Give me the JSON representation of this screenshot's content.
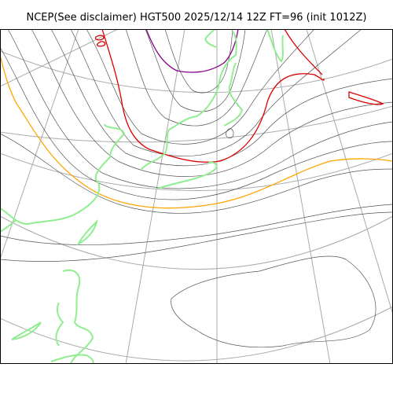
{
  "title": "NCEP(See disclaimer) HGT500 2025/12/14 12Z FT=96 (init 1012Z)",
  "colors": {
    "graticule": "#aaaaaa",
    "contour": "#555555",
    "coastline": "#90ee90",
    "highlight_contour_red": "#dd0000",
    "highlight_contour_purple": "#880088",
    "highlight_contour_orange": "#ffa500",
    "frame": "#000000"
  }
}
